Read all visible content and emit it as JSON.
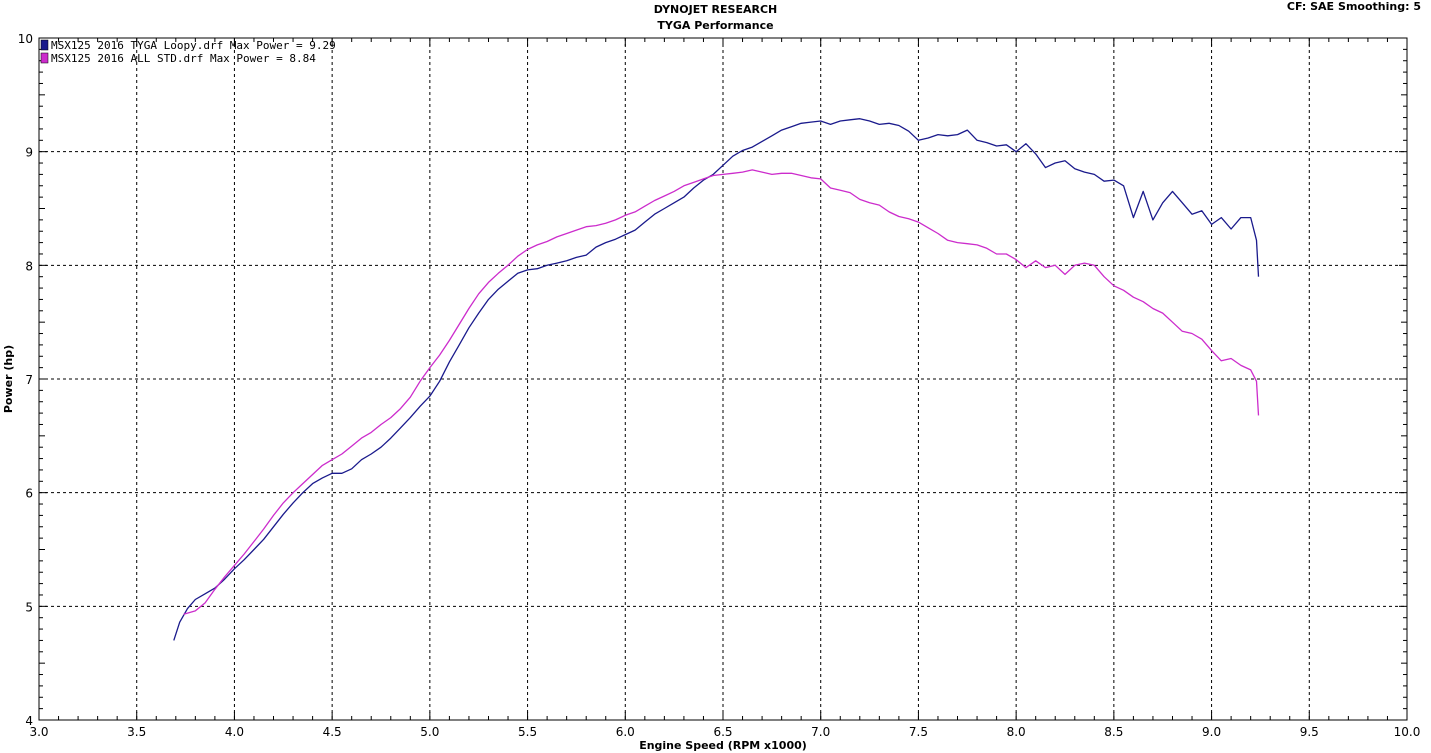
{
  "header": {
    "title": "DYNOJET RESEARCH",
    "subtitle": "TYGA Performance",
    "cf": "CF: SAE",
    "smoothing": "Smoothing: 5"
  },
  "chart_data": {
    "type": "line",
    "xlabel": "Engine Speed (RPM x1000)",
    "ylabel": "Power (hp)",
    "xlim": [
      3.0,
      10.0
    ],
    "ylim": [
      4,
      10
    ],
    "x_ticks": [
      "3.0",
      "3.5",
      "4.0",
      "4.5",
      "5.0",
      "5.5",
      "6.0",
      "6.5",
      "7.0",
      "7.5",
      "8.0",
      "8.5",
      "9.0",
      "9.5",
      "10.0"
    ],
    "y_ticks": [
      "4",
      "5",
      "6",
      "7",
      "8",
      "9",
      "10"
    ],
    "grid": true,
    "legend_position": "top-left",
    "series": [
      {
        "name": "MSX125 2016 TYGA Loopy.drf Max Power = 9.29",
        "color": "#1a1a8c",
        "points": [
          [
            3.69,
            4.7
          ],
          [
            3.72,
            4.86
          ],
          [
            3.76,
            4.98
          ],
          [
            3.8,
            5.06
          ],
          [
            3.85,
            5.11
          ],
          [
            3.9,
            5.16
          ],
          [
            3.95,
            5.24
          ],
          [
            4.0,
            5.33
          ],
          [
            4.05,
            5.41
          ],
          [
            4.1,
            5.5
          ],
          [
            4.15,
            5.59
          ],
          [
            4.2,
            5.7
          ],
          [
            4.25,
            5.81
          ],
          [
            4.3,
            5.91
          ],
          [
            4.35,
            6.0
          ],
          [
            4.4,
            6.08
          ],
          [
            4.45,
            6.13
          ],
          [
            4.5,
            6.17
          ],
          [
            4.55,
            6.17
          ],
          [
            4.6,
            6.21
          ],
          [
            4.65,
            6.29
          ],
          [
            4.7,
            6.34
          ],
          [
            4.75,
            6.4
          ],
          [
            4.8,
            6.48
          ],
          [
            4.85,
            6.57
          ],
          [
            4.9,
            6.66
          ],
          [
            4.95,
            6.76
          ],
          [
            5.0,
            6.85
          ],
          [
            5.05,
            6.98
          ],
          [
            5.1,
            7.15
          ],
          [
            5.15,
            7.3
          ],
          [
            5.2,
            7.45
          ],
          [
            5.25,
            7.58
          ],
          [
            5.3,
            7.7
          ],
          [
            5.35,
            7.79
          ],
          [
            5.4,
            7.86
          ],
          [
            5.45,
            7.93
          ],
          [
            5.5,
            7.96
          ],
          [
            5.55,
            7.97
          ],
          [
            5.6,
            8.0
          ],
          [
            5.65,
            8.02
          ],
          [
            5.7,
            8.04
          ],
          [
            5.75,
            8.07
          ],
          [
            5.8,
            8.09
          ],
          [
            5.85,
            8.16
          ],
          [
            5.9,
            8.2
          ],
          [
            5.95,
            8.23
          ],
          [
            6.0,
            8.27
          ],
          [
            6.05,
            8.31
          ],
          [
            6.1,
            8.38
          ],
          [
            6.15,
            8.45
          ],
          [
            6.2,
            8.5
          ],
          [
            6.25,
            8.55
          ],
          [
            6.3,
            8.6
          ],
          [
            6.35,
            8.68
          ],
          [
            6.4,
            8.75
          ],
          [
            6.45,
            8.8
          ],
          [
            6.5,
            8.88
          ],
          [
            6.55,
            8.96
          ],
          [
            6.6,
            9.01
          ],
          [
            6.65,
            9.04
          ],
          [
            6.7,
            9.09
          ],
          [
            6.75,
            9.14
          ],
          [
            6.8,
            9.19
          ],
          [
            6.85,
            9.22
          ],
          [
            6.9,
            9.25
          ],
          [
            6.95,
            9.26
          ],
          [
            7.0,
            9.27
          ],
          [
            7.05,
            9.24
          ],
          [
            7.1,
            9.27
          ],
          [
            7.15,
            9.28
          ],
          [
            7.2,
            9.29
          ],
          [
            7.25,
            9.27
          ],
          [
            7.3,
            9.24
          ],
          [
            7.35,
            9.25
          ],
          [
            7.4,
            9.23
          ],
          [
            7.45,
            9.18
          ],
          [
            7.5,
            9.1
          ],
          [
            7.55,
            9.12
          ],
          [
            7.6,
            9.15
          ],
          [
            7.65,
            9.14
          ],
          [
            7.7,
            9.15
          ],
          [
            7.75,
            9.19
          ],
          [
            7.8,
            9.1
          ],
          [
            7.85,
            9.08
          ],
          [
            7.9,
            9.05
          ],
          [
            7.95,
            9.06
          ],
          [
            8.0,
            9.0
          ],
          [
            8.05,
            9.07
          ],
          [
            8.1,
            8.98
          ],
          [
            8.15,
            8.86
          ],
          [
            8.2,
            8.9
          ],
          [
            8.25,
            8.92
          ],
          [
            8.3,
            8.85
          ],
          [
            8.35,
            8.82
          ],
          [
            8.4,
            8.8
          ],
          [
            8.45,
            8.74
          ],
          [
            8.5,
            8.75
          ],
          [
            8.55,
            8.7
          ],
          [
            8.6,
            8.42
          ],
          [
            8.65,
            8.65
          ],
          [
            8.7,
            8.4
          ],
          [
            8.75,
            8.55
          ],
          [
            8.8,
            8.65
          ],
          [
            8.85,
            8.55
          ],
          [
            8.9,
            8.45
          ],
          [
            8.95,
            8.48
          ],
          [
            9.0,
            8.36
          ],
          [
            9.05,
            8.42
          ],
          [
            9.1,
            8.32
          ],
          [
            9.15,
            8.42
          ],
          [
            9.2,
            8.42
          ],
          [
            9.23,
            8.22
          ],
          [
            9.24,
            7.9
          ]
        ]
      },
      {
        "name": "MSX125 2016 ALL STD.drf Max Power = 8.84",
        "color": "#cc2ccc",
        "points": [
          [
            3.74,
            4.93
          ],
          [
            3.8,
            4.96
          ],
          [
            3.85,
            5.03
          ],
          [
            3.9,
            5.15
          ],
          [
            3.95,
            5.26
          ],
          [
            4.0,
            5.36
          ],
          [
            4.05,
            5.46
          ],
          [
            4.1,
            5.57
          ],
          [
            4.15,
            5.68
          ],
          [
            4.2,
            5.8
          ],
          [
            4.25,
            5.91
          ],
          [
            4.3,
            6.0
          ],
          [
            4.35,
            6.08
          ],
          [
            4.4,
            6.16
          ],
          [
            4.45,
            6.24
          ],
          [
            4.5,
            6.29
          ],
          [
            4.55,
            6.34
          ],
          [
            4.6,
            6.41
          ],
          [
            4.65,
            6.48
          ],
          [
            4.7,
            6.53
          ],
          [
            4.75,
            6.6
          ],
          [
            4.8,
            6.66
          ],
          [
            4.85,
            6.74
          ],
          [
            4.9,
            6.84
          ],
          [
            4.95,
            6.98
          ],
          [
            5.0,
            7.1
          ],
          [
            5.05,
            7.21
          ],
          [
            5.1,
            7.34
          ],
          [
            5.15,
            7.48
          ],
          [
            5.2,
            7.62
          ],
          [
            5.25,
            7.75
          ],
          [
            5.3,
            7.85
          ],
          [
            5.35,
            7.93
          ],
          [
            5.4,
            8.0
          ],
          [
            5.45,
            8.08
          ],
          [
            5.5,
            8.14
          ],
          [
            5.55,
            8.18
          ],
          [
            5.6,
            8.21
          ],
          [
            5.65,
            8.25
          ],
          [
            5.7,
            8.28
          ],
          [
            5.75,
            8.31
          ],
          [
            5.8,
            8.34
          ],
          [
            5.85,
            8.35
          ],
          [
            5.9,
            8.37
          ],
          [
            5.95,
            8.4
          ],
          [
            6.0,
            8.44
          ],
          [
            6.05,
            8.47
          ],
          [
            6.1,
            8.52
          ],
          [
            6.15,
            8.57
          ],
          [
            6.2,
            8.61
          ],
          [
            6.25,
            8.65
          ],
          [
            6.3,
            8.7
          ],
          [
            6.35,
            8.73
          ],
          [
            6.4,
            8.76
          ],
          [
            6.45,
            8.79
          ],
          [
            6.5,
            8.8
          ],
          [
            6.55,
            8.81
          ],
          [
            6.6,
            8.82
          ],
          [
            6.65,
            8.84
          ],
          [
            6.7,
            8.82
          ],
          [
            6.75,
            8.8
          ],
          [
            6.8,
            8.81
          ],
          [
            6.85,
            8.81
          ],
          [
            6.9,
            8.79
          ],
          [
            6.95,
            8.77
          ],
          [
            7.0,
            8.76
          ],
          [
            7.05,
            8.68
          ],
          [
            7.1,
            8.66
          ],
          [
            7.15,
            8.64
          ],
          [
            7.2,
            8.58
          ],
          [
            7.25,
            8.55
          ],
          [
            7.3,
            8.53
          ],
          [
            7.35,
            8.47
          ],
          [
            7.4,
            8.43
          ],
          [
            7.45,
            8.41
          ],
          [
            7.5,
            8.38
          ],
          [
            7.55,
            8.33
          ],
          [
            7.6,
            8.28
          ],
          [
            7.65,
            8.22
          ],
          [
            7.7,
            8.2
          ],
          [
            7.75,
            8.19
          ],
          [
            7.8,
            8.18
          ],
          [
            7.85,
            8.15
          ],
          [
            7.9,
            8.1
          ],
          [
            7.95,
            8.1
          ],
          [
            8.0,
            8.05
          ],
          [
            8.05,
            7.98
          ],
          [
            8.1,
            8.04
          ],
          [
            8.15,
            7.98
          ],
          [
            8.2,
            8.0
          ],
          [
            8.25,
            7.92
          ],
          [
            8.3,
            8.0
          ],
          [
            8.35,
            8.02
          ],
          [
            8.4,
            8.0
          ],
          [
            8.45,
            7.9
          ],
          [
            8.5,
            7.82
          ],
          [
            8.55,
            7.78
          ],
          [
            8.6,
            7.72
          ],
          [
            8.65,
            7.68
          ],
          [
            8.7,
            7.62
          ],
          [
            8.75,
            7.58
          ],
          [
            8.8,
            7.5
          ],
          [
            8.85,
            7.42
          ],
          [
            8.9,
            7.4
          ],
          [
            8.95,
            7.35
          ],
          [
            9.0,
            7.25
          ],
          [
            9.05,
            7.16
          ],
          [
            9.1,
            7.18
          ],
          [
            9.15,
            7.12
          ],
          [
            9.2,
            7.08
          ],
          [
            9.23,
            6.98
          ],
          [
            9.24,
            6.68
          ]
        ]
      }
    ]
  }
}
